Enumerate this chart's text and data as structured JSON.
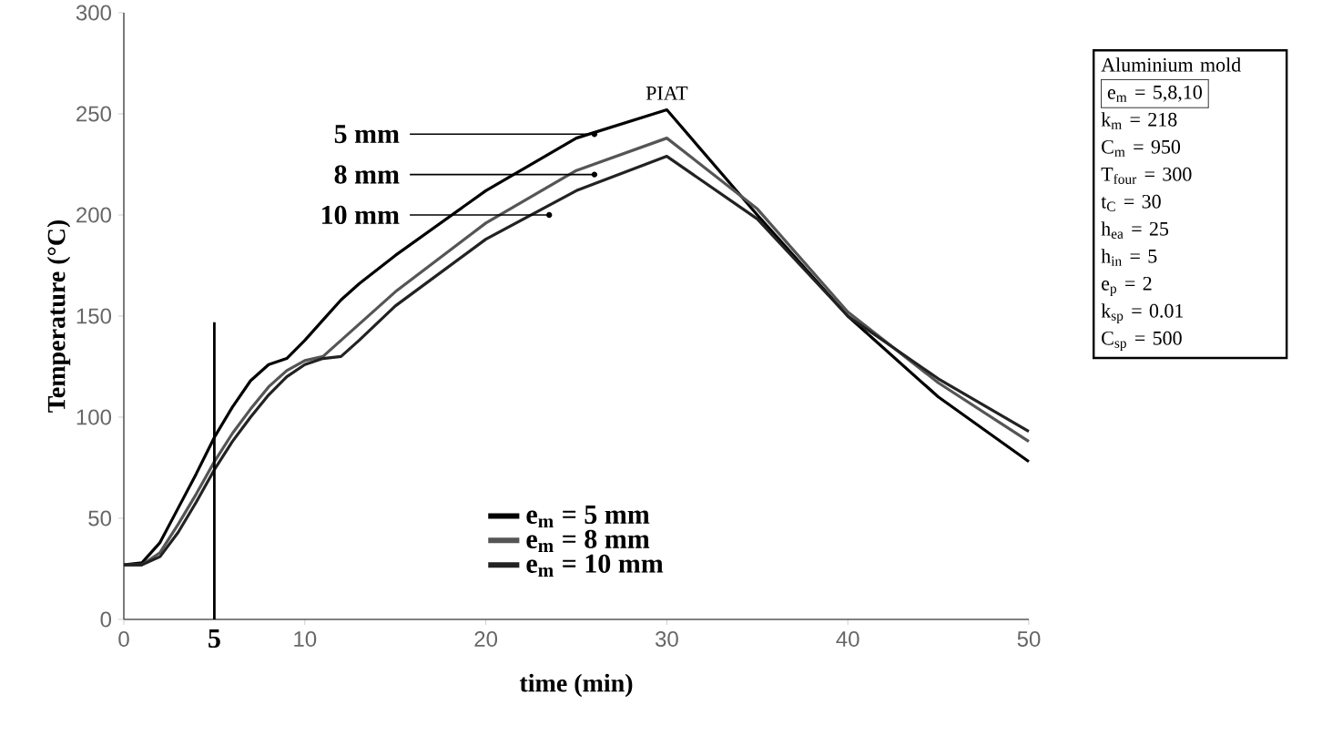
{
  "chart_data": {
    "type": "line",
    "xlabel": "time (min)",
    "ylabel": "Temperature (°C)",
    "xlim": [
      0,
      50
    ],
    "ylim": [
      0,
      300
    ],
    "xticks": [
      0,
      10,
      20,
      30,
      40,
      50
    ],
    "yticks": [
      0,
      50,
      100,
      150,
      200,
      250,
      300
    ],
    "grid": false,
    "legend": "bottom",
    "marker": "none",
    "line_style": "solid",
    "x": [
      0,
      1,
      2,
      3,
      4,
      5,
      6,
      7,
      8,
      9,
      10,
      11,
      12,
      13,
      15,
      20,
      25,
      30,
      35,
      40,
      45,
      50
    ],
    "series": [
      {
        "name": "e$_{m}$ = 5 mm",
        "color": "#000000",
        "values": [
          27,
          28,
          38,
          55,
          72,
          90,
          105,
          118,
          126,
          129,
          138,
          148,
          158,
          166,
          180,
          212,
          238,
          252,
          200,
          150,
          110,
          78
        ]
      },
      {
        "name": "e$_{m}$ = 8 mm",
        "color": "#555555",
        "values": [
          27,
          27,
          33,
          47,
          62,
          78,
          92,
          104,
          115,
          123,
          128,
          130,
          138,
          146,
          162,
          196,
          222,
          238,
          203,
          152,
          117,
          88
        ]
      },
      {
        "name": "e$_{m}$ = 10 mm",
        "color": "#222222",
        "values": [
          27,
          27,
          31,
          43,
          58,
          74,
          88,
          100,
          111,
          120,
          126,
          129,
          130,
          138,
          155,
          188,
          212,
          229,
          198,
          150,
          119,
          93
        ]
      }
    ],
    "ref_lines": [
      {
        "axis": "x",
        "value": 5,
        "label": "5",
        "color": "#000000"
      }
    ],
    "annotations": [
      {
        "text": "5 mm",
        "x": 26,
        "y": 240
      },
      {
        "text": "8 mm",
        "x": 26,
        "y": 220
      },
      {
        "text": "10 mm",
        "x": 23.5,
        "y": 200
      },
      {
        "text": "PIAT",
        "x": 30,
        "y": 252
      },
      "Aluminium mold",
      "e$_{m}$ = 5,8,10",
      "k$_{m}$ = 218",
      "C$_{m}$ = 950",
      "T$_{four}$ = 300",
      "t$_{C}$ = 30",
      "h$_{ea}$ = 25",
      "h$_{in}$ = 5",
      "e$_{p}$ = 2",
      "k$_{sp}$ = 0.01",
      "C$_{sp}$ = 500"
    ]
  }
}
